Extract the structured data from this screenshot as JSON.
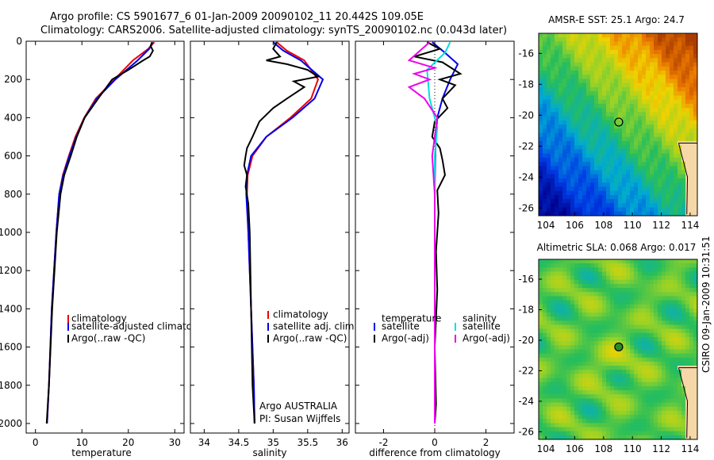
{
  "header": {
    "line1": "Argo profile: CS 5901677_6 01-Jan-2009 20090102_11 20.442S 109.05E",
    "line2": "Climatology: CARS2006. Satellite-adjusted climatology: synTS_20090102.nc (0.043d later)"
  },
  "side_stamp": "CSIRO 09-Jan-2009 10:31:51",
  "colors": {
    "climatology": "#ee0000",
    "satellite": "#0000ee",
    "argo": "#000000",
    "sat_salinity": "#00e0e0",
    "argo_salinity": "#ee00ee"
  },
  "chart_data": [
    {
      "type": "line",
      "name": "temperature-profile",
      "xlabel": "temperature",
      "ylabel": "",
      "xlim": [
        -2,
        32
      ],
      "ylim": [
        2050,
        0
      ],
      "xticks": [
        0,
        10,
        20,
        30
      ],
      "yticks": [
        0,
        200,
        400,
        600,
        800,
        1000,
        1200,
        1400,
        1600,
        1800,
        2000
      ],
      "legend": [
        "climatology",
        "satellite-adjusted climatolog",
        "Argo(..raw -QC)"
      ],
      "series": [
        {
          "name": "climatology",
          "color": "#ee0000",
          "x": [
            25.6,
            24.3,
            21.0,
            17.0,
            13.0,
            10.5,
            8.6,
            7.2,
            5.9,
            5.1,
            4.5,
            3.5,
            2.9,
            2.5
          ],
          "y": [
            5,
            40,
            100,
            200,
            300,
            400,
            500,
            600,
            700,
            800,
            1000,
            1400,
            1800,
            2000
          ]
        },
        {
          "name": "satellite-adjusted climatology",
          "color": "#0000ee",
          "x": [
            25.2,
            24.5,
            22.0,
            17.2,
            13.2,
            10.6,
            8.8,
            7.3,
            6.0,
            5.1,
            4.5,
            3.5,
            2.9,
            2.5
          ],
          "y": [
            5,
            40,
            100,
            200,
            300,
            400,
            500,
            600,
            700,
            800,
            1000,
            1400,
            1800,
            2000
          ]
        },
        {
          "name": "Argo(..raw -QC)",
          "color": "#000000",
          "x": [
            25.1,
            24.8,
            25.3,
            24.6,
            23.2,
            20.0,
            16.5,
            13.5,
            10.6,
            8.9,
            7.6,
            6.2,
            5.4,
            4.6,
            3.6,
            2.9,
            2.4
          ],
          "y": [
            5,
            25,
            50,
            80,
            100,
            150,
            200,
            300,
            400,
            500,
            600,
            700,
            800,
            1000,
            1400,
            1800,
            2000
          ]
        }
      ]
    },
    {
      "type": "line",
      "name": "salinity-profile",
      "xlabel": "salinity",
      "xlim": [
        33.8,
        36.1
      ],
      "ylim": [
        2050,
        0
      ],
      "xticks": [
        34,
        34.5,
        35,
        35.5,
        36
      ],
      "legend": [
        "climatology",
        "satellite adj. clim.",
        "Argo(..raw -QC)"
      ],
      "annotation_lines": [
        "Argo AUSTRALIA",
        "PI: Susan Wijffels"
      ],
      "series": [
        {
          "name": "climatology",
          "color": "#ee0000",
          "x": [
            35.05,
            35.2,
            35.45,
            35.65,
            35.55,
            35.25,
            34.9,
            34.7,
            34.63,
            34.62,
            34.64,
            34.68,
            34.72,
            34.73
          ],
          "y": [
            5,
            50,
            100,
            200,
            300,
            400,
            500,
            600,
            700,
            800,
            1000,
            1400,
            1800,
            2000
          ]
        },
        {
          "name": "satellite adj. clim.",
          "color": "#0000ee",
          "x": [
            35.0,
            35.15,
            35.4,
            35.72,
            35.6,
            35.28,
            34.9,
            34.68,
            34.62,
            34.61,
            34.64,
            34.68,
            34.72,
            34.73
          ],
          "y": [
            5,
            50,
            100,
            200,
            300,
            400,
            500,
            600,
            700,
            800,
            1000,
            1400,
            1800,
            2000
          ]
        },
        {
          "name": "Argo(..raw -QC)",
          "color": "#000000",
          "x": [
            35.05,
            35.0,
            35.1,
            34.9,
            35.2,
            35.5,
            35.65,
            35.3,
            35.45,
            35.2,
            35.0,
            34.8,
            34.7,
            34.62,
            34.6,
            34.58,
            34.62,
            34.6,
            34.64,
            34.66,
            34.68,
            34.7,
            34.73
          ],
          "y": [
            5,
            40,
            80,
            100,
            120,
            150,
            185,
            210,
            240,
            300,
            350,
            420,
            500,
            560,
            600,
            650,
            700,
            760,
            850,
            1000,
            1400,
            1800,
            2000
          ]
        }
      ]
    },
    {
      "type": "line",
      "name": "difference-profile",
      "xlabel": "difference from climatology",
      "xlim": [
        -3.1,
        3.1
      ],
      "ylim": [
        2050,
        0
      ],
      "xticks": [
        -2,
        0,
        2
      ],
      "legend_left_title": "temperature",
      "legend_right_title": "salinity",
      "legend": [
        "satellite",
        "Argo(-adj)",
        "satellite",
        "Argo(-adj)"
      ],
      "series": [
        {
          "name": "temperature satellite",
          "color": "#0000ee",
          "x": [
            -0.1,
            0.4,
            0.9,
            0.6,
            0.3,
            0.1,
            0.05,
            0.02,
            0.0,
            0.0,
            0.0
          ],
          "y": [
            5,
            60,
            120,
            200,
            300,
            400,
            500,
            600,
            800,
            1400,
            2000
          ]
        },
        {
          "name": "temperature Argo(-adj)",
          "color": "#000000",
          "x": [
            -0.3,
            0.2,
            -0.8,
            0.3,
            1.0,
            0.2,
            0.8,
            0.3,
            0.5,
            0.0,
            -0.1,
            0.2,
            0.3,
            0.4,
            0.1,
            0.15,
            0.05,
            0.1,
            0.0,
            0.05,
            0.0
          ],
          "y": [
            5,
            40,
            80,
            110,
            170,
            200,
            230,
            300,
            350,
            420,
            500,
            560,
            620,
            700,
            780,
            900,
            1100,
            1300,
            1600,
            1900,
            2000
          ]
        },
        {
          "name": "salinity satellite",
          "color": "#00e0e0",
          "x": [
            0.6,
            0.4,
            -0.3,
            -0.2,
            0.1,
            0.0,
            0.0,
            0.0,
            0.0
          ],
          "y": [
            5,
            60,
            150,
            300,
            450,
            600,
            800,
            1400,
            2000
          ]
        },
        {
          "name": "salinity Argo(-adj)",
          "color": "#ee00ee",
          "x": [
            -0.2,
            -1.0,
            0.0,
            -0.8,
            -0.2,
            -1.0,
            -0.4,
            0.1,
            -0.1,
            0.0,
            0.0
          ],
          "y": [
            5,
            100,
            140,
            170,
            200,
            240,
            300,
            400,
            600,
            800,
            2000
          ]
        }
      ]
    },
    {
      "type": "heatmap",
      "name": "amsre-sst-map",
      "title": "AMSR-E SST: 25.1 Argo: 24.7",
      "xlim": [
        103.5,
        114.5
      ],
      "ylim": [
        -26.5,
        -14.7
      ],
      "xticks": [
        104,
        106,
        108,
        110,
        112,
        114
      ],
      "yticks": [
        -16,
        -18,
        -20,
        -22,
        -24,
        -26
      ],
      "marker": {
        "lon": 109.05,
        "lat": -20.442
      }
    },
    {
      "type": "heatmap",
      "name": "altimetric-sla-map",
      "title": "Altimetric SLA: 0.068 Argo: 0.017",
      "xlim": [
        103.5,
        114.5
      ],
      "ylim": [
        -26.5,
        -14.7
      ],
      "xticks": [
        104,
        106,
        108,
        110,
        112,
        114
      ],
      "yticks": [
        -16,
        -18,
        -20,
        -22,
        -24,
        -26
      ],
      "marker": {
        "lon": 109.05,
        "lat": -20.442
      }
    }
  ]
}
